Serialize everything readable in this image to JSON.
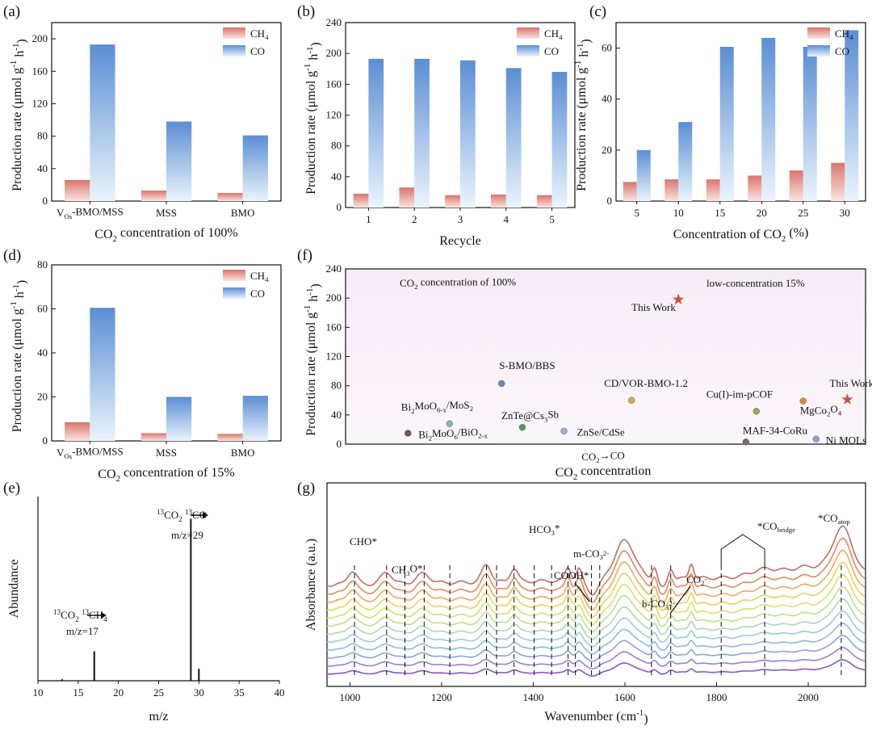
{
  "colors": {
    "ch4": "#d9756b",
    "co": "#5b8ed4"
  },
  "chart_data": [
    {
      "panel": "(a)",
      "type": "bar",
      "categories": [
        "VOs-BMO/MSS",
        "MSS",
        "BMO"
      ],
      "category_display": [
        [
          "V",
          "Os",
          "-BMO/MSS"
        ],
        [
          "MSS",
          "",
          ""
        ],
        [
          "BMO",
          "",
          ""
        ]
      ],
      "series": [
        {
          "name": "CH4",
          "values": [
            26,
            13,
            10
          ]
        },
        {
          "name": "CO",
          "values": [
            193,
            98,
            81
          ]
        }
      ],
      "legend": [
        "CH",
        "4",
        "CO"
      ],
      "xlabel": "CO2 concentration of 100%",
      "xlabel_parts": [
        "CO",
        "2",
        " concentration of 100%"
      ],
      "ylabel": "Production rate (μmol g-1 h-1)",
      "ylim": [
        0,
        220
      ],
      "yticks": [
        0,
        40,
        80,
        120,
        160,
        200
      ]
    },
    {
      "panel": "(b)",
      "type": "bar",
      "categories": [
        "1",
        "2",
        "3",
        "4",
        "5"
      ],
      "series": [
        {
          "name": "CH4",
          "values": [
            18,
            26,
            16,
            17,
            16
          ]
        },
        {
          "name": "CO",
          "values": [
            193,
            193,
            191,
            181,
            176
          ]
        }
      ],
      "legend": [
        "CH",
        "4",
        "CO"
      ],
      "xlabel": "Recycle",
      "ylabel": "Production rate (μmol g-1 h-1)",
      "ylim": [
        0,
        240
      ],
      "yticks": [
        0,
        40,
        80,
        120,
        160,
        200,
        240
      ]
    },
    {
      "panel": "(c)",
      "type": "bar",
      "categories": [
        "5",
        "10",
        "15",
        "20",
        "25",
        "30"
      ],
      "series": [
        {
          "name": "CH4",
          "values": [
            7.5,
            8.5,
            8.5,
            10,
            12,
            15
          ]
        },
        {
          "name": "CO",
          "values": [
            20,
            31,
            60.5,
            64,
            60.5,
            67
          ]
        }
      ],
      "legend": [
        "CH",
        "4",
        "CO"
      ],
      "xlabel": "Concentration of CO2 (%)",
      "xlabel_parts": [
        "Concentration of CO",
        "2",
        " (%)"
      ],
      "ylabel": "Production rate (μmol g-1 h-1)",
      "ylim": [
        0,
        70
      ],
      "yticks": [
        0,
        20,
        40,
        60
      ]
    },
    {
      "panel": "(d)",
      "type": "bar",
      "categories": [
        "VOs-BMO/MSS",
        "MSS",
        "BMO"
      ],
      "category_display": [
        [
          "V",
          "Os",
          "-BMO/MSS"
        ],
        [
          "MSS",
          "",
          ""
        ],
        [
          "BMO",
          "",
          ""
        ]
      ],
      "series": [
        {
          "name": "CH4",
          "values": [
            8.5,
            3.5,
            3.2
          ]
        },
        {
          "name": "CO",
          "values": [
            60.5,
            20,
            20.5
          ]
        }
      ],
      "legend": [
        "CH",
        "4",
        "CO"
      ],
      "xlabel": "CO2 concentration of 15%",
      "xlabel_parts": [
        "CO",
        "2",
        " concentration of 15%"
      ],
      "ylabel": "Production rate (μmol g-1 h-1)",
      "ylim": [
        0,
        80
      ],
      "yticks": [
        0,
        20,
        40,
        60,
        80
      ]
    },
    {
      "panel": "(f)",
      "type": "scatter",
      "ylabel": "Production rate (μmol g-1 h-1)",
      "ylim": [
        0,
        240
      ],
      "yticks": [
        0,
        40,
        80,
        120,
        160,
        200,
        240
      ],
      "xlabel": "CO2 concentration",
      "xlabel_parts": [
        "CO",
        "2",
        " concentration"
      ],
      "x_annotation": "CO2→CO",
      "x_annotation_parts": [
        "CO",
        "2",
        "→CO"
      ],
      "region_left": "CO2 concentration of 100%",
      "region_left_parts": [
        "CO",
        "2",
        " concentration of 100%"
      ],
      "region_right": "low-concentration 15%",
      "points": [
        {
          "label": "This Work",
          "y": 198,
          "pos": 0.64,
          "color": "#c8553d",
          "marker": "star",
          "lx": -58,
          "ly": 14
        },
        {
          "label": "S-BMO/BBS",
          "y": 83,
          "pos": 0.3,
          "color": "#6f87c4",
          "marker": "circle",
          "lx": -3,
          "ly": -18
        },
        {
          "label": "CD/VOR-BMO-1.2",
          "y": 60,
          "pos": 0.55,
          "color": "#c9b14a",
          "marker": "circle",
          "lx": -34,
          "ly": -17
        },
        {
          "label": "Cu(I)-im-pCOF",
          "y": 45,
          "pos": 0.79,
          "color": "#9aac45",
          "marker": "circle",
          "lx": -62,
          "ly": -17
        },
        {
          "label": "MgCo2O4",
          "y": 59,
          "pos": 0.88,
          "color": "#d98b3a",
          "marker": "circle",
          "lx": -4,
          "ly": 16,
          "parts": [
            "MgCo",
            "2",
            "O",
            "4"
          ]
        },
        {
          "label": "This Work",
          "y": 61,
          "pos": 0.965,
          "color": "#c8553d",
          "marker": "star",
          "lx": -22,
          "ly": -16
        },
        {
          "label": "Bi2MoO6-x/MoS2",
          "y": 28,
          "pos": 0.2,
          "color": "#8fb0ae",
          "marker": "circle",
          "lx": -60,
          "ly": -16,
          "parts": [
            "Bi",
            "2",
            "MoO",
            "6-x",
            "/MoS",
            "2"
          ]
        },
        {
          "label": "ZnTe@Cs3Sb",
          "y": 23,
          "pos": 0.34,
          "color": "#4f9e62",
          "marker": "circle",
          "lx": -26,
          "ly": -10,
          "parts": [
            "ZnTe@Cs",
            "3",
            "Sb"
          ]
        },
        {
          "label": "ZnSe/CdSe",
          "y": 18,
          "pos": 0.42,
          "color": "#a6a6d8",
          "marker": "circle",
          "lx": 16,
          "ly": 6
        },
        {
          "label": "Bi2MoO6/BiO2-x",
          "y": 15,
          "pos": 0.12,
          "color": "#6b5a5a",
          "marker": "circle",
          "lx": 13,
          "ly": 6,
          "parts": [
            "Bi",
            "2",
            "MoO",
            "6",
            "/BiO",
            "2-x"
          ]
        },
        {
          "label": "MAF-34-CoRu",
          "y": 3,
          "pos": 0.77,
          "color": "#7a6a6a",
          "marker": "circle",
          "lx": -4,
          "ly": -10
        },
        {
          "label": "Ni MOLs",
          "y": 7,
          "pos": 0.905,
          "color": "#8ea0d8",
          "marker": "circle",
          "lx": 12,
          "ly": 6
        }
      ]
    },
    {
      "panel": "(e)",
      "type": "bar",
      "subtype": "mass-spectrum",
      "xlabel": "m/z",
      "ylabel": "Abundance",
      "xlim": [
        10,
        40
      ],
      "xticks": [
        10,
        15,
        20,
        25,
        30,
        35,
        40
      ],
      "peaks": [
        {
          "mz": 13,
          "rel": 0.008
        },
        {
          "mz": 17,
          "rel": 0.16
        },
        {
          "mz": 29,
          "rel": 0.88
        },
        {
          "mz": 30,
          "rel": 0.065
        }
      ],
      "annotations": [
        {
          "text": "13CO2 → 13CH4",
          "parts": [
            "13",
            "CO",
            "2",
            "13",
            "CH",
            "4"
          ],
          "sub": "m/z=17"
        },
        {
          "text": "13CO2 → 13CO",
          "parts": [
            "13",
            "CO",
            "2",
            "13",
            "CO"
          ],
          "sub": "m/z=29"
        }
      ]
    },
    {
      "panel": "(g)",
      "type": "line",
      "xlabel": "Wavenumber (cm-1)",
      "xlabel_parts": [
        "Wavenumber (cm",
        "-1",
        ")"
      ],
      "ylabel": "Absorbance (a.u.)",
      "xlim": [
        950,
        2125
      ],
      "xticks": [
        1000,
        1200,
        1400,
        1600,
        1800,
        2000
      ],
      "series_count": 12,
      "series_colors": [
        "#8a54c8",
        "#9b7fd6",
        "#8aa3dc",
        "#86bde0",
        "#93d0d6",
        "#a8d9b8",
        "#bfe08a",
        "#d8e06a",
        "#ecd25a",
        "#eeaa56",
        "#e08a5e",
        "#c86a62"
      ],
      "dashed_lines": [
        1010,
        1080,
        1120,
        1162,
        1218,
        1298,
        1320,
        1358,
        1402,
        1440,
        1476,
        1492,
        1527,
        1545,
        1658,
        1700,
        1810,
        1905,
        2072
      ],
      "labels": [
        {
          "text": "CHO*",
          "x": 1030,
          "parts": [
            "CHO*"
          ]
        },
        {
          "text": "CH3O*",
          "x": 1135,
          "parts": [
            "CH",
            "3",
            "O*"
          ]
        },
        {
          "text": "HCO3*",
          "x": 1440,
          "parts": [
            "HCO",
            "3",
            "*"
          ]
        },
        {
          "text": "m-CO32-",
          "x": 1555,
          "parts": [
            "m-CO",
            "3",
            "2-"
          ]
        },
        {
          "text": "COOH*",
          "x": 1495,
          "parts": [
            "COOH*"
          ]
        },
        {
          "text": "b-CO32-",
          "x": 1680,
          "parts": [
            "b-CO",
            "3",
            "2-"
          ]
        },
        {
          "text": "CO2-",
          "x": 1755,
          "parts": [
            "CO",
            "2",
            "-"
          ]
        },
        {
          "text": "*CObridge",
          "x": 1857,
          "parts": [
            "*CO",
            "bridge"
          ]
        },
        {
          "text": "*COatop",
          "x": 2075,
          "parts": [
            "*CO",
            "atop"
          ]
        }
      ]
    }
  ]
}
